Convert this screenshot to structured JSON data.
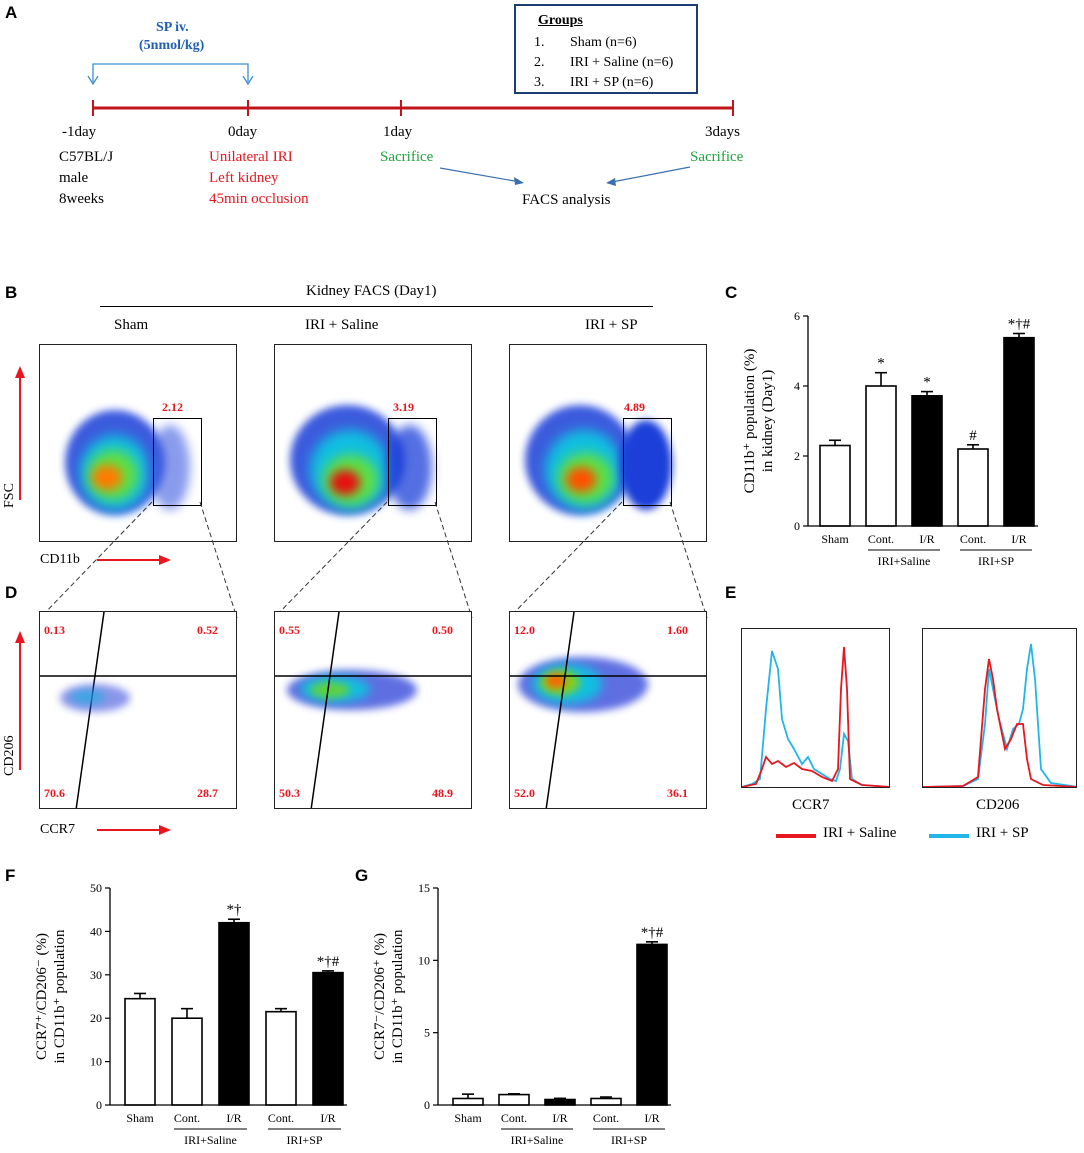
{
  "panels": [
    "A",
    "B",
    "C",
    "D",
    "E",
    "F",
    "G"
  ],
  "timeline": {
    "sp_label_1": "SP iv.",
    "sp_label_2": "(5nmol/kg)",
    "days": [
      "-1day",
      "0day",
      "1day",
      "3days"
    ],
    "day_m1_text": [
      "C57BL/J",
      "male",
      "8weeks"
    ],
    "day_0_text": [
      "Unilateral IRI",
      "Left kidney",
      "45min occlusion"
    ],
    "sacrifice": "Sacrifice",
    "facs": "FACS analysis",
    "groups_title": "Groups",
    "groups": [
      {
        "num": "1.",
        "label": "Sham (n=6)"
      },
      {
        "num": "2.",
        "label": "IRI + Saline (n=6)"
      },
      {
        "num": "3.",
        "label": "IRI + SP (n=6)"
      }
    ]
  },
  "facs": {
    "title": "Kidney FACS (Day1)",
    "columns": [
      "Sham",
      "IRI + Saline",
      "IRI + SP"
    ],
    "gate_values": [
      "2.12",
      "3.19",
      "4.89"
    ],
    "x_label_b": "CD11b",
    "y_label_b": "FSC",
    "x_label_d": "CCR7",
    "y_label_d": "CD206",
    "quadrants": [
      {
        "ul": "0.13",
        "ur": "0.52",
        "ll": "70.6",
        "lr": "28.7"
      },
      {
        "ul": "0.55",
        "ur": "0.50",
        "ll": "50.3",
        "lr": "48.9"
      },
      {
        "ul": "12.0",
        "ur": "1.60",
        "ll": "52.0",
        "lr": "36.1"
      }
    ]
  },
  "histogram": {
    "labels": [
      "CCR7",
      "CD206"
    ],
    "legend": [
      {
        "name": "IRI + Saline",
        "color": "#e8161e"
      },
      {
        "name": "IRI + SP",
        "color": "#22b5e8"
      }
    ]
  },
  "chart_data": [
    {
      "panel": "C",
      "type": "bar",
      "ylabel": "CD11b⁺ population (%) in kidney (Day1)",
      "ylim": [
        0,
        6
      ],
      "yticks": [
        0,
        2,
        4,
        6
      ],
      "categories": [
        "Sham",
        "Cont.",
        "I/R",
        "Cont.",
        "I/R"
      ],
      "groups": [
        "IRI+Saline",
        "IRI+SP"
      ],
      "values": [
        2.3,
        4.0,
        3.72,
        2.2,
        5.38
      ],
      "errors": [
        0.15,
        0.38,
        0.12,
        0.12,
        0.12
      ],
      "filled": [
        false,
        false,
        true,
        false,
        true
      ],
      "annotations": [
        "",
        "*",
        "*",
        "#",
        "*†#"
      ]
    },
    {
      "panel": "F",
      "type": "bar",
      "ylabel": "CCR7⁺/CD206⁻ (%) in CD11b⁺ population",
      "ylim": [
        0,
        50
      ],
      "yticks": [
        0,
        10,
        20,
        30,
        40,
        50
      ],
      "categories": [
        "Sham",
        "Cont.",
        "I/R",
        "Cont.",
        "I/R"
      ],
      "groups": [
        "IRI+Saline",
        "IRI+SP"
      ],
      "values": [
        24.5,
        20.0,
        42.0,
        21.5,
        30.5
      ],
      "errors": [
        1.2,
        2.2,
        0.8,
        0.7,
        0.4
      ],
      "filled": [
        false,
        false,
        true,
        false,
        true
      ],
      "annotations": [
        "",
        "",
        "*†",
        "",
        "*†#"
      ]
    },
    {
      "panel": "G",
      "type": "bar",
      "ylabel": "CCR7⁻/CD206⁺ (%) in CD11b⁺ population",
      "ylim": [
        0,
        15
      ],
      "yticks": [
        0,
        5,
        10,
        15
      ],
      "categories": [
        "Sham",
        "Cont.",
        "I/R",
        "Cont.",
        "I/R"
      ],
      "groups": [
        "IRI+Saline",
        "IRI+SP"
      ],
      "values": [
        0.45,
        0.72,
        0.38,
        0.45,
        11.1
      ],
      "errors": [
        0.3,
        0.05,
        0.08,
        0.1,
        0.18
      ],
      "filled": [
        false,
        false,
        true,
        false,
        true
      ],
      "annotations": [
        "",
        "",
        "",
        "",
        "*†#"
      ]
    }
  ]
}
